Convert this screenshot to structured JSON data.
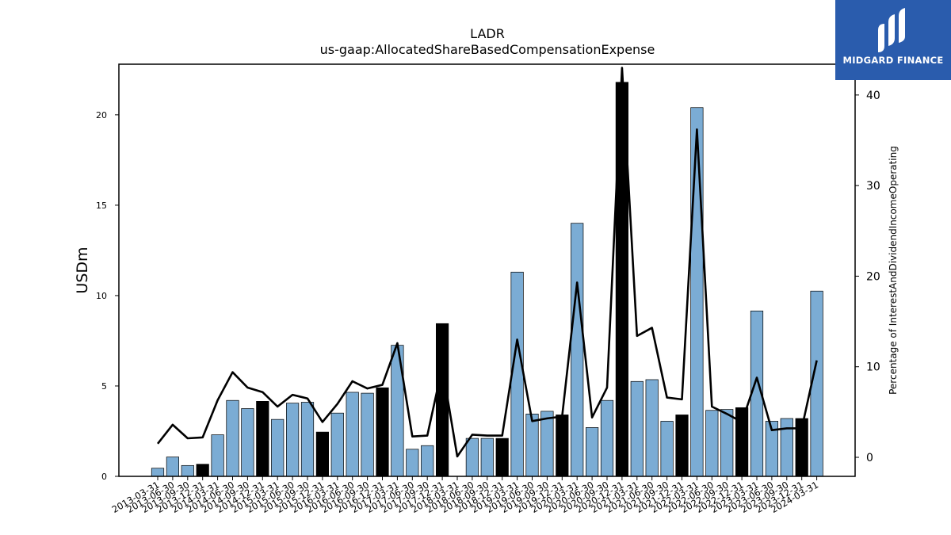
{
  "chart_data": {
    "type": "bar",
    "title": "LADR",
    "subtitle": "us-gaap:AllocatedShareBasedCompensationExpense",
    "ylabel": "USDm",
    "y2label": "Percentage of InterestAndDividendIncomeOperating",
    "ylim": [
      0,
      22.8
    ],
    "y2lim": [
      -2.1,
      43.4
    ],
    "yticks": [
      0,
      5,
      10,
      15,
      20
    ],
    "y2ticks": [
      0,
      10,
      20,
      30,
      40
    ],
    "categories": [
      "2013-03-31",
      "2013-06-30",
      "2013-09-30",
      "2013-12-31",
      "2014-03-31",
      "2014-06-30",
      "2014-09-30",
      "2014-12-31",
      "2015-03-31",
      "2015-06-30",
      "2015-09-30",
      "2015-12-31",
      "2016-03-31",
      "2016-06-30",
      "2016-09-30",
      "2016-12-31",
      "2017-03-31",
      "2017-06-30",
      "2017-09-30",
      "2017-12-31",
      "2018-03-31",
      "2018-06-30",
      "2018-09-30",
      "2018-12-31",
      "2019-03-31",
      "2019-06-30",
      "2019-09-30",
      "2019-12-31",
      "2020-03-31",
      "2020-06-30",
      "2020-09-30",
      "2020-12-31",
      "2021-03-31",
      "2021-06-30",
      "2021-09-30",
      "2021-12-31",
      "2022-03-31",
      "2022-06-30",
      "2022-09-30",
      "2022-12-31",
      "2023-03-31",
      "2023-06-30",
      "2023-09-30",
      "2023-12-31",
      "2024-03-31"
    ],
    "series": [
      {
        "kind": "bar",
        "axis": "left",
        "values": [
          0.45,
          1.07,
          0.6,
          0.67,
          2.3,
          4.2,
          3.75,
          4.15,
          3.15,
          4.05,
          4.1,
          2.45,
          3.5,
          4.65,
          4.6,
          4.9,
          7.25,
          1.5,
          1.7,
          8.45,
          0,
          2.1,
          2.1,
          2.1,
          11.3,
          3.45,
          3.6,
          3.4,
          14.0,
          2.7,
          4.2,
          21.8,
          5.25,
          5.35,
          3.05,
          3.4,
          20.4,
          3.65,
          3.7,
          3.8,
          9.15,
          3.05,
          3.2,
          3.2,
          10.25
        ],
        "year_end": [
          false,
          false,
          false,
          true,
          false,
          false,
          false,
          true,
          false,
          false,
          false,
          true,
          false,
          false,
          false,
          true,
          false,
          false,
          false,
          true,
          false,
          false,
          false,
          true,
          false,
          false,
          false,
          true,
          false,
          false,
          false,
          true,
          false,
          false,
          false,
          true,
          false,
          false,
          false,
          true,
          false,
          false,
          false,
          true,
          false
        ]
      },
      {
        "kind": "line",
        "axis": "right",
        "values": [
          1.5,
          3.6,
          2.1,
          2.2,
          6.3,
          9.4,
          7.7,
          7.2,
          5.6,
          6.9,
          6.5,
          3.9,
          5.9,
          8.4,
          7.6,
          8.0,
          12.6,
          2.3,
          2.4,
          10.0,
          0.1,
          2.5,
          2.4,
          2.4,
          13.0,
          4.0,
          4.3,
          4.5,
          19.3,
          4.4,
          7.7,
          43.0,
          13.4,
          14.3,
          6.6,
          6.4,
          36.2,
          5.6,
          4.8,
          3.9,
          8.8,
          3.0,
          3.2,
          3.2,
          10.7
        ]
      }
    ],
    "colors": {
      "bar": "#7bacd4",
      "bar_year_end": "#000000",
      "line": "#000000",
      "edge": "#000000"
    },
    "grid": false,
    "legend": "none"
  },
  "logo": {
    "text": "MIDGARD FINANCE",
    "color": "#2a5cad"
  }
}
